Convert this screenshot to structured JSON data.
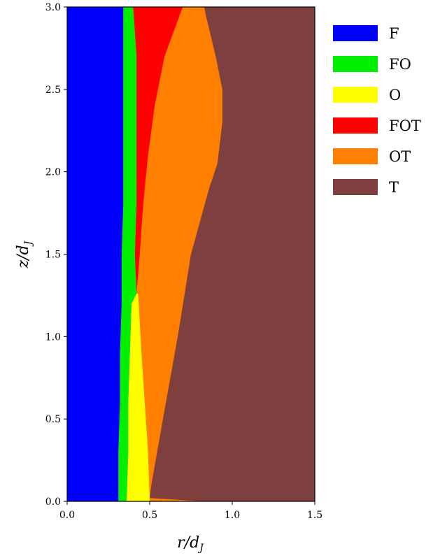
{
  "chart_data": {
    "type": "area",
    "xlabel": "r/dJ",
    "ylabel": "z/dJ",
    "xlim": [
      0.0,
      1.5
    ],
    "ylim": [
      0.0,
      3.0
    ],
    "xticks": [
      0.0,
      0.5,
      1.0,
      1.5
    ],
    "xtick_labels": [
      "0.0",
      "0.5",
      "1.0",
      "1.5"
    ],
    "yticks": [
      0.0,
      0.5,
      1.0,
      1.5,
      2.0,
      2.5,
      3.0
    ],
    "ytick_labels": [
      "0.0",
      "0.5",
      "1.0",
      "1.5",
      "2.0",
      "2.5",
      "3.0"
    ],
    "grid": false,
    "legend_position": "outside-right",
    "series": [
      {
        "name": "F",
        "color": "#0000ff",
        "boundary": [
          [
            0.31,
            0.0
          ],
          [
            0.31,
            0.3
          ],
          [
            0.32,
            0.6
          ],
          [
            0.32,
            0.9
          ],
          [
            0.33,
            1.2
          ],
          [
            0.33,
            1.5
          ],
          [
            0.34,
            1.8
          ],
          [
            0.34,
            2.1
          ],
          [
            0.34,
            2.4
          ],
          [
            0.34,
            2.7
          ],
          [
            0.34,
            3.0
          ]
        ]
      },
      {
        "name": "FO",
        "color": "#00ee00",
        "boundary": [
          [
            0.36,
            0.0
          ],
          [
            0.37,
            0.3
          ],
          [
            0.37,
            0.6
          ],
          [
            0.38,
            0.9
          ],
          [
            0.39,
            1.2
          ],
          [
            0.42,
            1.26
          ],
          [
            0.41,
            1.5
          ],
          [
            0.42,
            1.8
          ],
          [
            0.42,
            2.1
          ],
          [
            0.42,
            2.4
          ],
          [
            0.42,
            2.7
          ],
          [
            0.4,
            3.0
          ]
        ]
      },
      {
        "name": "O",
        "color": "#ffff00",
        "boundary": [
          [
            0.5,
            0.0
          ],
          [
            0.49,
            0.3
          ],
          [
            0.47,
            0.6
          ],
          [
            0.45,
            0.9
          ],
          [
            0.43,
            1.26
          ]
        ]
      },
      {
        "name": "FOT",
        "color": "#ff0000",
        "boundary": [
          [
            0.42,
            1.26
          ],
          [
            0.44,
            1.5
          ],
          [
            0.46,
            1.8
          ],
          [
            0.49,
            2.1
          ],
          [
            0.53,
            2.4
          ],
          [
            0.59,
            2.7
          ],
          [
            0.7,
            3.0
          ]
        ]
      },
      {
        "name": "OT",
        "color": "#ff8000",
        "boundary": [
          [
            0.83,
            0.0
          ],
          [
            0.5,
            0.02
          ],
          [
            0.51,
            0.1
          ],
          [
            0.58,
            0.5
          ],
          [
            0.67,
            1.0
          ],
          [
            0.75,
            1.5
          ],
          [
            0.86,
            1.9
          ],
          [
            0.91,
            2.05
          ],
          [
            0.94,
            2.3
          ],
          [
            0.94,
            2.5
          ],
          [
            0.9,
            2.7
          ],
          [
            0.84,
            2.95
          ],
          [
            0.83,
            3.0
          ]
        ]
      },
      {
        "name": "T",
        "color": "#7f3f3f",
        "boundary": []
      }
    ]
  }
}
